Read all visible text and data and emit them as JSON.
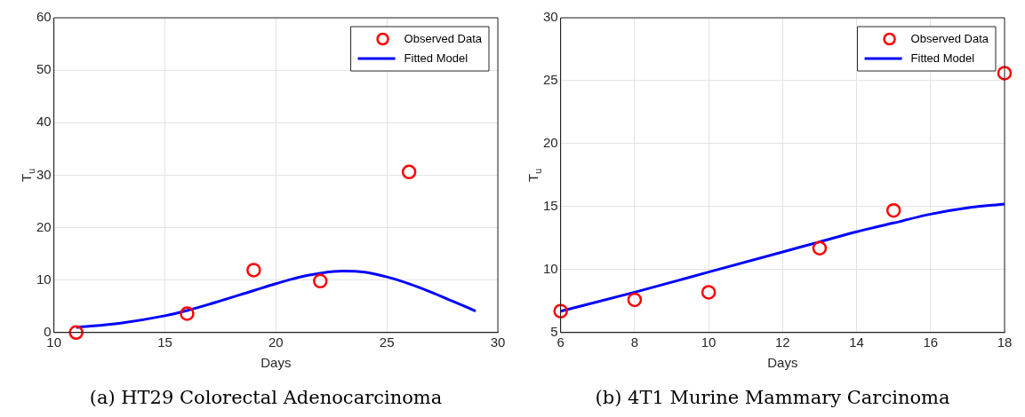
{
  "chart_data": [
    {
      "type": "scatter",
      "title": "(a) HT29 Colorectal Adenocarcinoma",
      "xlabel": "Days",
      "ylabel": "T$_{u}$",
      "xlim": [
        10,
        30
      ],
      "xticks": [
        10,
        15,
        20,
        25,
        30
      ],
      "ylim": [
        0,
        60
      ],
      "yticks": [
        0,
        10,
        20,
        30,
        40,
        50,
        60
      ],
      "grid": true,
      "legend": "top right",
      "series": [
        {
          "name": "Observed Data",
          "marker": "circle",
          "color": "#ff0000",
          "x": [
            11,
            16,
            19,
            22,
            26
          ],
          "values": [
            0,
            3.6,
            11.9,
            9.8,
            30.6
          ]
        },
        {
          "name": "Fitted Model",
          "type": "line",
          "marker": "none",
          "color": "#0000ff",
          "x": [
            11,
            13,
            15,
            16,
            17,
            19,
            20,
            21,
            22,
            23,
            24,
            25,
            26,
            27,
            28,
            29
          ],
          "values": [
            1.0,
            1.8,
            3.2,
            4.2,
            5.4,
            8.0,
            9.3,
            10.5,
            11.3,
            11.7,
            11.5,
            10.6,
            9.3,
            7.7,
            5.9,
            4.1
          ]
        }
      ]
    },
    {
      "type": "scatter",
      "title": "(b) 4T1 Murine Mammary Carcinoma",
      "xlabel": "Days",
      "ylabel": "T$_{u}$",
      "xlim": [
        6,
        18
      ],
      "xticks": [
        6,
        8,
        10,
        12,
        14,
        16,
        18
      ],
      "ylim": [
        5,
        30
      ],
      "yticks": [
        5,
        10,
        15,
        20,
        25,
        30
      ],
      "grid": true,
      "legend": "top right",
      "series": [
        {
          "name": "Observed Data",
          "marker": "circle",
          "color": "#ff0000",
          "x": [
            6,
            8,
            10,
            13,
            15,
            18
          ],
          "values": [
            6.7,
            7.6,
            8.2,
            11.7,
            14.7,
            25.6
          ]
        },
        {
          "name": "Fitted Model",
          "type": "line",
          "marker": "none",
          "color": "#0000ff",
          "x": [
            6,
            8,
            10,
            12,
            13,
            14,
            15,
            16,
            17,
            18
          ],
          "values": [
            6.7,
            8.2,
            9.8,
            11.4,
            12.2,
            13.0,
            13.7,
            14.4,
            14.9,
            15.2
          ]
        }
      ]
    }
  ]
}
